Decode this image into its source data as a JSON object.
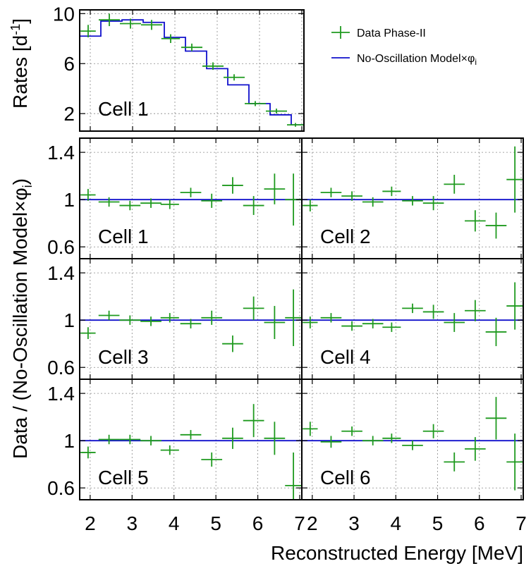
{
  "colors": {
    "data": "#1f9a1f",
    "model": "#1010cc",
    "axis": "#000000",
    "grid": "#888888"
  },
  "top_ylabel": "Rates [d",
  "top_ylabel_sup": "-1",
  "top_ylabel_end": "]",
  "ratio_ylabel": "Data / (No-Oscillation Model×φ",
  "ratio_ylabel_sub": "i",
  "ratio_ylabel_end": ")",
  "xlabel": "Reconstructed Energy [MeV]",
  "legend": {
    "data": "Data Phase-II",
    "model": "No-Oscillation Model×φ",
    "model_sub": "i"
  },
  "chart_data": [
    {
      "type": "line",
      "panel": "top",
      "cell_label": "Cell 1",
      "xlim": [
        1.75,
        7.05
      ],
      "ylim": [
        0.6,
        10.3
      ],
      "yticks": [
        2,
        6,
        10
      ],
      "bin_edges": [
        1.75,
        2.25,
        2.75,
        3.25,
        3.75,
        4.25,
        4.75,
        5.25,
        5.75,
        6.25,
        6.75,
        7.05
      ],
      "model": [
        8.2,
        9.4,
        9.5,
        9.3,
        8.1,
        7.0,
        5.6,
        4.3,
        2.8,
        1.9,
        1.1
      ],
      "data": {
        "x": [
          1.95,
          2.45,
          2.95,
          3.45,
          3.9,
          4.4,
          4.9,
          5.4,
          5.9,
          6.4,
          6.85
        ],
        "xerr": [
          0.18,
          0.25,
          0.25,
          0.25,
          0.22,
          0.25,
          0.25,
          0.25,
          0.25,
          0.25,
          0.2
        ],
        "y": [
          8.6,
          9.5,
          9.2,
          9.1,
          8.0,
          7.3,
          5.8,
          4.9,
          2.8,
          2.2,
          1.1
        ],
        "yerr": [
          0.5,
          0.5,
          0.4,
          0.4,
          0.35,
          0.3,
          0.3,
          0.25,
          0.2,
          0.2,
          0.15
        ]
      }
    },
    {
      "type": "scatter",
      "cell_label": "Cell 1",
      "xlim": [
        1.75,
        7.05
      ],
      "ylim": [
        0.5,
        1.52
      ],
      "yticks": [
        0.6,
        1,
        1.4
      ],
      "model": 1.0,
      "data": {
        "x": [
          1.95,
          2.45,
          2.95,
          3.45,
          3.9,
          4.4,
          4.9,
          5.4,
          5.9,
          6.4,
          6.85
        ],
        "xerr": [
          0.18,
          0.25,
          0.25,
          0.25,
          0.22,
          0.25,
          0.25,
          0.25,
          0.25,
          0.25,
          0.2
        ],
        "y": [
          1.04,
          0.98,
          0.95,
          0.97,
          0.96,
          1.06,
          0.99,
          1.12,
          0.95,
          1.09,
          1.0
        ],
        "yerr": [
          0.05,
          0.04,
          0.04,
          0.04,
          0.04,
          0.04,
          0.06,
          0.07,
          0.08,
          0.13,
          0.22
        ]
      }
    },
    {
      "type": "scatter",
      "cell_label": "Cell 2",
      "xlim": [
        1.75,
        7.05
      ],
      "ylim": [
        0.5,
        1.52
      ],
      "yticks": [
        0.6,
        1,
        1.4
      ],
      "model": 1.0,
      "data": {
        "x": [
          1.95,
          2.45,
          2.95,
          3.45,
          3.9,
          4.4,
          4.9,
          5.4,
          5.9,
          6.4,
          6.85
        ],
        "xerr": [
          0.18,
          0.25,
          0.25,
          0.25,
          0.22,
          0.25,
          0.25,
          0.25,
          0.25,
          0.25,
          0.2
        ],
        "y": [
          0.95,
          1.06,
          1.03,
          0.98,
          1.07,
          0.99,
          0.97,
          1.13,
          0.82,
          0.78,
          1.17
        ],
        "yerr": [
          0.05,
          0.04,
          0.04,
          0.04,
          0.04,
          0.04,
          0.06,
          0.08,
          0.09,
          0.11,
          0.28
        ]
      }
    },
    {
      "type": "scatter",
      "cell_label": "Cell 3",
      "xlim": [
        1.75,
        7.05
      ],
      "ylim": [
        0.5,
        1.52
      ],
      "yticks": [
        0.6,
        1,
        1.4
      ],
      "model": 1.0,
      "data": {
        "x": [
          1.95,
          2.45,
          2.95,
          3.45,
          3.9,
          4.4,
          4.9,
          5.4,
          5.9,
          6.4,
          6.85
        ],
        "xerr": [
          0.18,
          0.25,
          0.25,
          0.25,
          0.22,
          0.25,
          0.25,
          0.25,
          0.25,
          0.25,
          0.2
        ],
        "y": [
          0.89,
          1.04,
          1.0,
          0.99,
          1.02,
          0.97,
          1.02,
          0.8,
          1.1,
          0.98,
          1.02
        ],
        "yerr": [
          0.05,
          0.04,
          0.04,
          0.04,
          0.04,
          0.04,
          0.06,
          0.07,
          0.1,
          0.14,
          0.24
        ]
      }
    },
    {
      "type": "scatter",
      "cell_label": "Cell 4",
      "xlim": [
        1.75,
        7.05
      ],
      "ylim": [
        0.5,
        1.52
      ],
      "yticks": [
        0.6,
        1,
        1.4
      ],
      "model": 1.0,
      "data": {
        "x": [
          1.95,
          2.45,
          2.95,
          3.45,
          3.9,
          4.4,
          4.9,
          5.4,
          5.9,
          6.4,
          6.85
        ],
        "xerr": [
          0.18,
          0.25,
          0.25,
          0.25,
          0.22,
          0.25,
          0.25,
          0.25,
          0.25,
          0.25,
          0.2
        ],
        "y": [
          0.98,
          1.02,
          0.95,
          0.97,
          0.94,
          1.1,
          1.07,
          0.98,
          1.08,
          0.9,
          1.12
        ],
        "yerr": [
          0.05,
          0.04,
          0.04,
          0.04,
          0.04,
          0.04,
          0.06,
          0.08,
          0.09,
          0.12,
          0.2
        ]
      }
    },
    {
      "type": "scatter",
      "cell_label": "Cell 5",
      "xlim": [
        1.75,
        7.05
      ],
      "ylim": [
        0.5,
        1.52
      ],
      "yticks": [
        0.6,
        1,
        1.4
      ],
      "model": 1.0,
      "data": {
        "x": [
          1.95,
          2.45,
          2.95,
          3.45,
          3.9,
          4.4,
          4.9,
          5.4,
          5.9,
          6.4,
          6.85
        ],
        "xerr": [
          0.18,
          0.25,
          0.25,
          0.25,
          0.22,
          0.25,
          0.25,
          0.25,
          0.25,
          0.25,
          0.2
        ],
        "y": [
          0.9,
          1.01,
          1.01,
          1.0,
          0.92,
          1.05,
          0.84,
          1.02,
          1.17,
          1.02,
          0.62
        ],
        "yerr": [
          0.05,
          0.04,
          0.04,
          0.04,
          0.04,
          0.04,
          0.06,
          0.09,
          0.14,
          0.14,
          0.28
        ]
      }
    },
    {
      "type": "scatter",
      "cell_label": "Cell 6",
      "xlim": [
        1.75,
        7.05
      ],
      "ylim": [
        0.5,
        1.52
      ],
      "yticks": [
        0.6,
        1,
        1.4
      ],
      "model": 1.0,
      "data": {
        "x": [
          1.95,
          2.45,
          2.95,
          3.45,
          3.9,
          4.4,
          4.9,
          5.4,
          5.9,
          6.4,
          6.85
        ],
        "xerr": [
          0.18,
          0.25,
          0.25,
          0.25,
          0.22,
          0.25,
          0.25,
          0.25,
          0.25,
          0.25,
          0.2
        ],
        "y": [
          1.1,
          0.99,
          1.08,
          1.0,
          1.02,
          0.96,
          1.08,
          0.82,
          0.93,
          1.19,
          0.82
        ],
        "yerr": [
          0.06,
          0.05,
          0.04,
          0.04,
          0.04,
          0.04,
          0.06,
          0.08,
          0.1,
          0.18,
          0.24
        ]
      }
    }
  ],
  "xticks": [
    2,
    3,
    4,
    5,
    6,
    7
  ]
}
